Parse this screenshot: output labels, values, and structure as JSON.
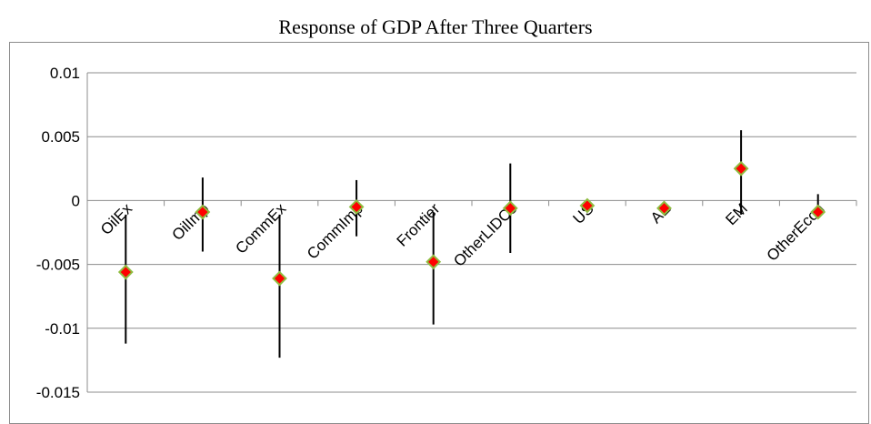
{
  "chart_data": {
    "type": "scatter",
    "title": "Response of GDP After Three Quarters",
    "xlabel": "",
    "ylabel": "",
    "ylim": [
      -0.015,
      0.01
    ],
    "yticks": [
      "0.01",
      "0.005",
      "0",
      "-0.005",
      "-0.01",
      "-0.015"
    ],
    "ytick_values": [
      0.01,
      0.005,
      0,
      -0.005,
      -0.01,
      -0.015
    ],
    "grid": true,
    "legend": "none",
    "marker": "diamond",
    "marker_fill": "#ff0000",
    "marker_edge": "#8fbc3f",
    "error_bar_color": "#000000",
    "categories": [
      "OilEx",
      "OilImp",
      "CommEx",
      "CommImp",
      "Frontier",
      "OtherLIDCs",
      "US",
      "AE",
      "EM",
      "OtherEcon"
    ],
    "values": [
      -0.0056,
      -0.0009,
      -0.0061,
      -0.0005,
      -0.0048,
      -0.0006,
      -0.0004,
      -0.0006,
      0.0025,
      -0.0009
    ],
    "lower": [
      -0.0112,
      -0.004,
      -0.0123,
      -0.0028,
      -0.0097,
      -0.0041,
      -0.0004,
      -0.0006,
      -0.0011,
      -0.0009
    ],
    "upper": [
      -0.0011,
      0.0018,
      -0.0011,
      0.0016,
      -0.0009,
      0.0029,
      -0.0004,
      -0.0006,
      0.0055,
      0.0005
    ]
  }
}
